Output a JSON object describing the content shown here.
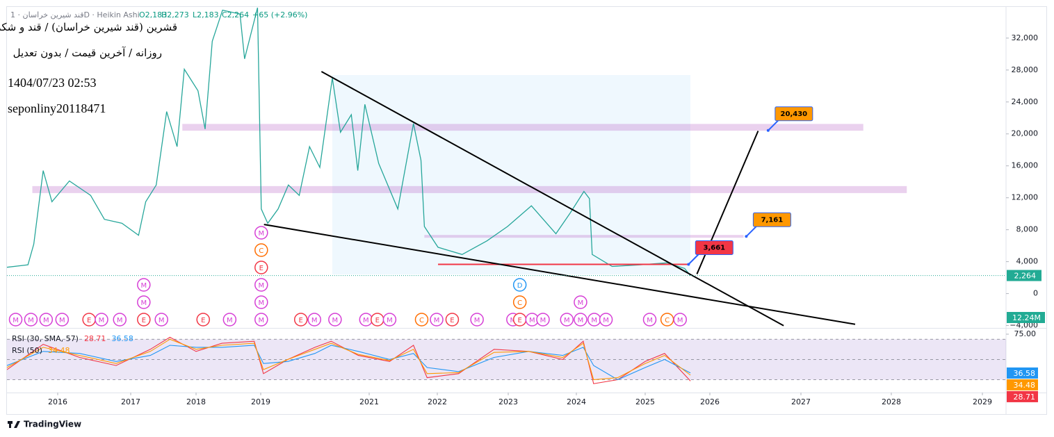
{
  "header": {
    "symbol": "قند شیرین خراسان · 1D · Heikin Ashi",
    "ohlc": [
      "O2,183",
      "H2,273",
      "L2,183",
      "C2,264"
    ],
    "change": "+65 (+2.96%)"
  },
  "overlay": {
    "title": "قشرین (قند شیرین خراسان) / قند و شکر",
    "subtitle": "روزانه / آخرین قیمت / بدون تعدیل",
    "datetime": "1404/07/23 02:53",
    "user": "seponliny20118471"
  },
  "chart_data": [
    {
      "type": "line",
      "color": "#26a69a",
      "x": [
        2015.3,
        2015.59,
        2015.67,
        2015.8,
        2015.92,
        2016.16,
        2016.45,
        2016.64,
        2016.88,
        2017.12,
        2017.23,
        2017.39,
        2017.55,
        2017.71,
        2017.82,
        2018.03,
        2018.14,
        2018.25,
        2018.41,
        2018.68,
        2018.75,
        2018.95,
        2019.01,
        2019.13,
        2019.32,
        2019.51,
        2019.71,
        2019.9,
        2020.09,
        2020.32,
        2020.47,
        2020.67,
        2020.79,
        2020.92,
        2021.14,
        2021.42,
        2021.65,
        2021.76,
        2021.81,
        2022.01,
        2022.35,
        2022.7,
        2022.99,
        2023.34,
        2023.7,
        2023.91,
        2024.11,
        2024.19,
        2024.23,
        2024.52,
        2024.92,
        2025.34,
        2025.61,
        2025.7
      ],
      "values": [
        3300,
        3600,
        6200,
        15400,
        11500,
        14100,
        12300,
        9300,
        8800,
        7300,
        11500,
        13600,
        22800,
        18400,
        28100,
        25400,
        20600,
        31600,
        35500,
        35000,
        29400,
        35800,
        10600,
        8800,
        10600,
        13600,
        12300,
        18400,
        15800,
        27000,
        20200,
        22400,
        15400,
        23700,
        16300,
        10600,
        21300,
        16700,
        8400,
        5800,
        4900,
        6600,
        8400,
        11000,
        7500,
        10100,
        12800,
        11900,
        4900,
        3400,
        3600,
        3850,
        3150,
        2264
      ],
      "xlim": [
        2015.3,
        2029.24
      ],
      "xticks": [
        2016,
        2017,
        2018,
        2019,
        2021,
        2022,
        2023,
        2024,
        2025,
        2026,
        2027,
        2028,
        2029
      ],
      "ylim": [
        -4300,
        35900
      ],
      "yticks": [
        {
          "value": 32000,
          "label": "32,000"
        },
        {
          "value": 28000,
          "label": "28,000"
        },
        {
          "value": 24000,
          "label": "24,000"
        },
        {
          "value": 20000,
          "label": "20,000"
        },
        {
          "value": 16000,
          "label": "16,000"
        },
        {
          "value": 12000,
          "label": "12,000"
        },
        {
          "value": 8000,
          "label": "8,000"
        },
        {
          "value": 4000,
          "label": "4,000"
        },
        0,
        {
          "value": -4000,
          "label": "−4,000"
        }
      ],
      "last_price": {
        "value": 2264,
        "label": "2,264",
        "color": "#22ab94"
      },
      "volume_label": "12.24M",
      "zone_color": "rgba(186,104,200,0.3)",
      "zones": [
        {
          "from": 20400,
          "to": 21250,
          "x": [
            2017.79,
            2027.69
          ]
        },
        {
          "from": 12590,
          "to": 13465,
          "x": [
            2015.65,
            2028.17
          ]
        },
        {
          "from": 6995,
          "to": 7345,
          "x": [
            2021.81,
            2026.37
          ]
        }
      ],
      "trend_lines": [
        {
          "x": [
            2020.12,
            2026.81
          ],
          "y": [
            27805,
            -4022
          ]
        },
        {
          "x": [
            2019.06,
            2027.6
          ],
          "y": [
            8656,
            -3847
          ]
        },
        {
          "x": [
            2025.8,
            2026.53
          ],
          "y": [
            2448,
            20372
          ]
        }
      ],
      "price_line": {
        "value": 3661,
        "x": [
          2022.01,
          2025.67
        ],
        "color": "#f23645"
      },
      "annotations": [
        {
          "x": 2026.64,
          "value": 20430,
          "label": "20,430",
          "color": "#ff9800"
        },
        {
          "x": 2026.4,
          "value": 7161,
          "label": "7,161",
          "color": "#ff9800"
        },
        {
          "x": 2025.67,
          "value": 3661,
          "label": "3,661",
          "color": "#f23645"
        }
      ],
      "event_colors": {
        "M": "#d63fd6",
        "E": "#f23645",
        "C": "#ff6d00",
        "D": "#2196f3"
      },
      "events": [
        {
          "x": 2015.42,
          "label": "M"
        },
        {
          "x": 2015.63,
          "label": "M"
        },
        {
          "x": 2015.84,
          "label": "M"
        },
        {
          "x": 2016.06,
          "label": "M"
        },
        {
          "x": 2016.43,
          "label": "E"
        },
        {
          "x": 2016.6,
          "label": "M"
        },
        {
          "x": 2016.85,
          "label": "M"
        },
        {
          "x": 2017.2,
          "label": "E"
        },
        {
          "x": 2017.2,
          "label": "M"
        },
        {
          "x": 2017.2,
          "label": "M"
        },
        {
          "x": 2017.47,
          "label": "M"
        },
        {
          "x": 2018.11,
          "label": "E"
        },
        {
          "x": 2018.52,
          "label": "M"
        },
        {
          "x": 2019.01,
          "label": "M"
        },
        {
          "x": 2019.01,
          "label": "M"
        },
        {
          "x": 2019.01,
          "label": "M"
        },
        {
          "x": 2019.01,
          "label": "E"
        },
        {
          "x": 2019.01,
          "label": "C"
        },
        {
          "x": 2019.01,
          "label": "M"
        },
        {
          "x": 2019.74,
          "label": "E"
        },
        {
          "x": 2019.99,
          "label": "M"
        },
        {
          "x": 2020.37,
          "label": "M"
        },
        {
          "x": 2020.94,
          "label": "M"
        },
        {
          "x": 2021.12,
          "label": "E"
        },
        {
          "x": 2021.3,
          "label": "M"
        },
        {
          "x": 2021.77,
          "label": "C"
        },
        {
          "x": 2021.99,
          "label": "M"
        },
        {
          "x": 2022.21,
          "label": "E"
        },
        {
          "x": 2022.56,
          "label": "M"
        },
        {
          "x": 2023.07,
          "label": "M"
        },
        {
          "x": 2023.17,
          "label": "E"
        },
        {
          "x": 2023.17,
          "label": "C"
        },
        {
          "x": 2023.17,
          "label": "D"
        },
        {
          "x": 2023.35,
          "label": "M"
        },
        {
          "x": 2023.51,
          "label": "M"
        },
        {
          "x": 2023.86,
          "label": "M"
        },
        {
          "x": 2024.06,
          "label": "M"
        },
        {
          "x": 2024.06,
          "label": "M"
        },
        {
          "x": 2024.26,
          "label": "M"
        },
        {
          "x": 2024.43,
          "label": "M"
        },
        {
          "x": 2025.07,
          "label": "M"
        },
        {
          "x": 2025.34,
          "label": "C"
        },
        {
          "x": 2025.54,
          "label": "M"
        }
      ]
    },
    {
      "type": "line",
      "x": [
        2015.3,
        2015.8,
        2016.3,
        2016.8,
        2017.3,
        2017.6,
        2018.0,
        2018.4,
        2018.9,
        2019.05,
        2019.5,
        2020.0,
        2020.3,
        2020.8,
        2021.3,
        2021.65,
        2021.85,
        2022.3,
        2022.8,
        2023.3,
        2023.8,
        2024.1,
        2024.25,
        2024.6,
        2025.0,
        2025.3,
        2025.7
      ],
      "series": [
        {
          "name": "RSI (30, SMA, 57)",
          "color": "#f23645",
          "values": [
            40,
            65,
            52,
            44,
            60,
            72,
            58,
            66,
            68,
            36,
            50,
            62,
            68,
            54,
            48,
            64,
            32,
            36,
            60,
            58,
            50,
            68,
            26,
            30,
            48,
            56,
            28.71
          ]
        },
        {
          "color": "#2196f3",
          "values": [
            44,
            58,
            56,
            48,
            54,
            64,
            62,
            62,
            64,
            46,
            48,
            56,
            64,
            58,
            50,
            56,
            42,
            38,
            52,
            58,
            54,
            62,
            44,
            30,
            42,
            50,
            36.58
          ]
        },
        {
          "name": "RSI (50)",
          "color": "#ff9800",
          "values": [
            42,
            62,
            54,
            46,
            58,
            70,
            60,
            64,
            66,
            40,
            50,
            60,
            66,
            55,
            49,
            60,
            36,
            37,
            57,
            58,
            52,
            66,
            30,
            32,
            46,
            54,
            34.48
          ]
        }
      ],
      "ylim": [
        17.3,
        80.5
      ],
      "yticks": [
        {
          "value": 75,
          "label": "75.00"
        }
      ],
      "band": [
        30,
        70
      ],
      "levels": [
        30,
        50,
        70
      ],
      "band_color": "rgba(126,87,194,0.15)"
    }
  ],
  "footer": {
    "brand": "TradingView"
  }
}
